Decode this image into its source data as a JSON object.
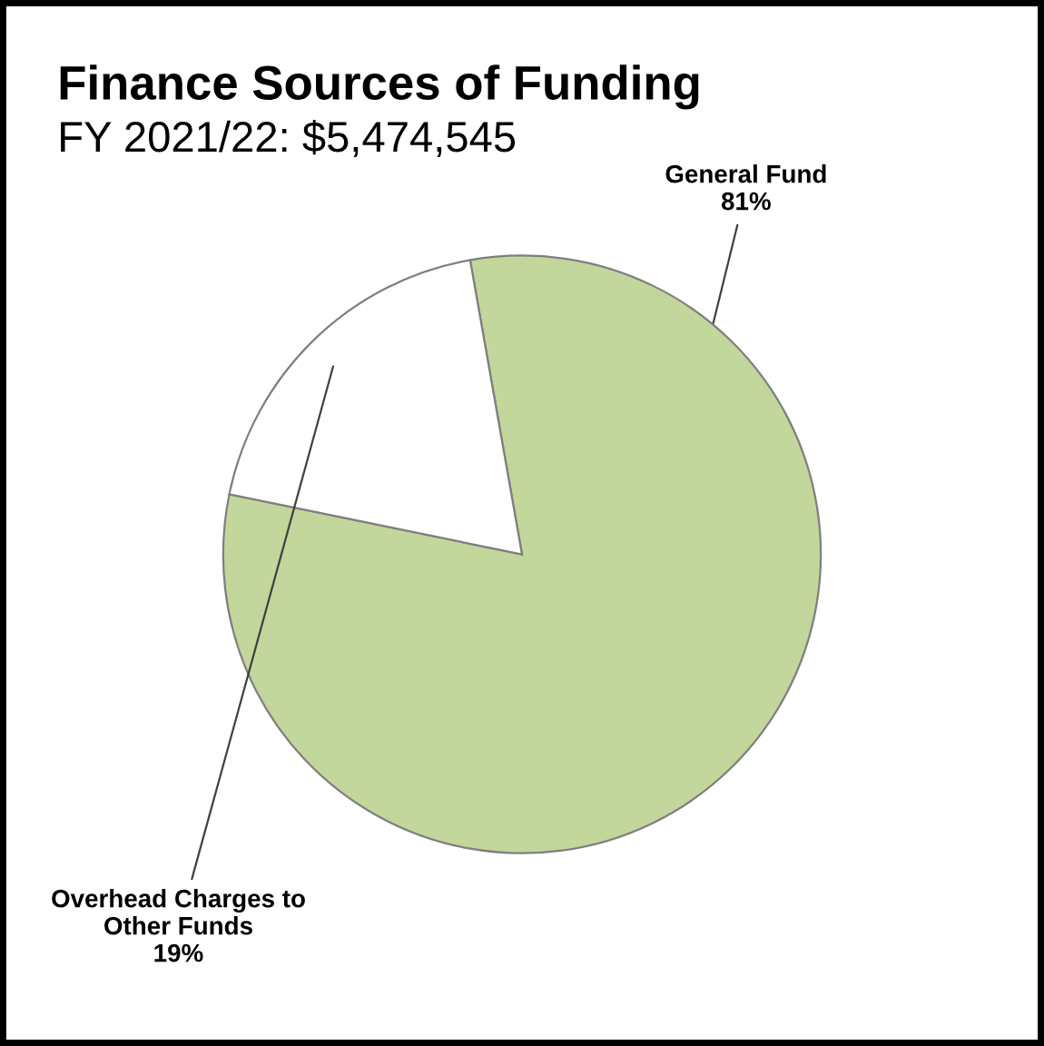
{
  "chart_data": {
    "type": "pie",
    "title": "Finance Sources of Funding",
    "subtitle": "FY 2021/22: $5,474,545",
    "categories": [
      "General Fund",
      "Overhead Charges to\nOther Funds"
    ],
    "values": [
      81,
      19
    ],
    "value_labels": [
      "81%",
      "19%"
    ],
    "colors": [
      "#c3d69b",
      "#ffffff"
    ]
  }
}
